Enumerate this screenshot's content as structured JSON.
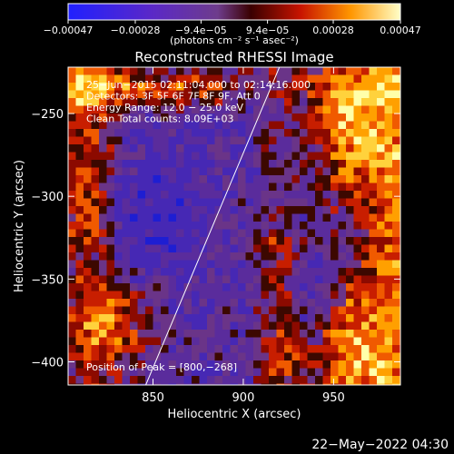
{
  "chart_data": {
    "type": "heatmap",
    "title": "Reconstructed RHESSI Image",
    "xlabel": "Heliocentric X (arcsec)",
    "ylabel": "Heliocentric Y (arcsec)",
    "xlim": [
      803,
      987
    ],
    "ylim": [
      -414,
      -222
    ],
    "x_ticks": [
      850,
      900,
      950
    ],
    "x_tick_labels": [
      "850",
      "900",
      "950"
    ],
    "y_ticks": [
      -250,
      -300,
      -350,
      -400
    ],
    "y_tick_labels": [
      "−250",
      "−300",
      "−350",
      "−400"
    ],
    "colorbar": {
      "range": [
        -0.00047,
        0.00047
      ],
      "ticks": [
        -0.00047,
        -0.00028,
        -9.4e-05,
        9.4e-05,
        0.00028,
        0.00047
      ],
      "tick_labels": [
        "−0.00047",
        "−0.00028",
        "−9.4e−05",
        "9.4e−05",
        "0.00028",
        "0.00047"
      ],
      "unit_label": "(photons cm⁻² s⁻¹ asec⁻²)"
    },
    "annotations": [
      "25−Jun−2015 02:11:04.000 to 02:14:16.000",
      "Detectors: 3F 5F 6F 7F 8F 9F, Att 0",
      "Energy Range: 12.0 − 25.0 keV",
      "Clean    Total counts: 8.09E+03"
    ],
    "peak_label": "Position of Peak = [800,−268]",
    "limb_line": [
      {
        "x": 920,
        "y": -222
      },
      {
        "x": 846,
        "y": -414
      }
    ],
    "grid": false
  },
  "footer": {
    "timestamp": "22−May−2022 04:30"
  }
}
